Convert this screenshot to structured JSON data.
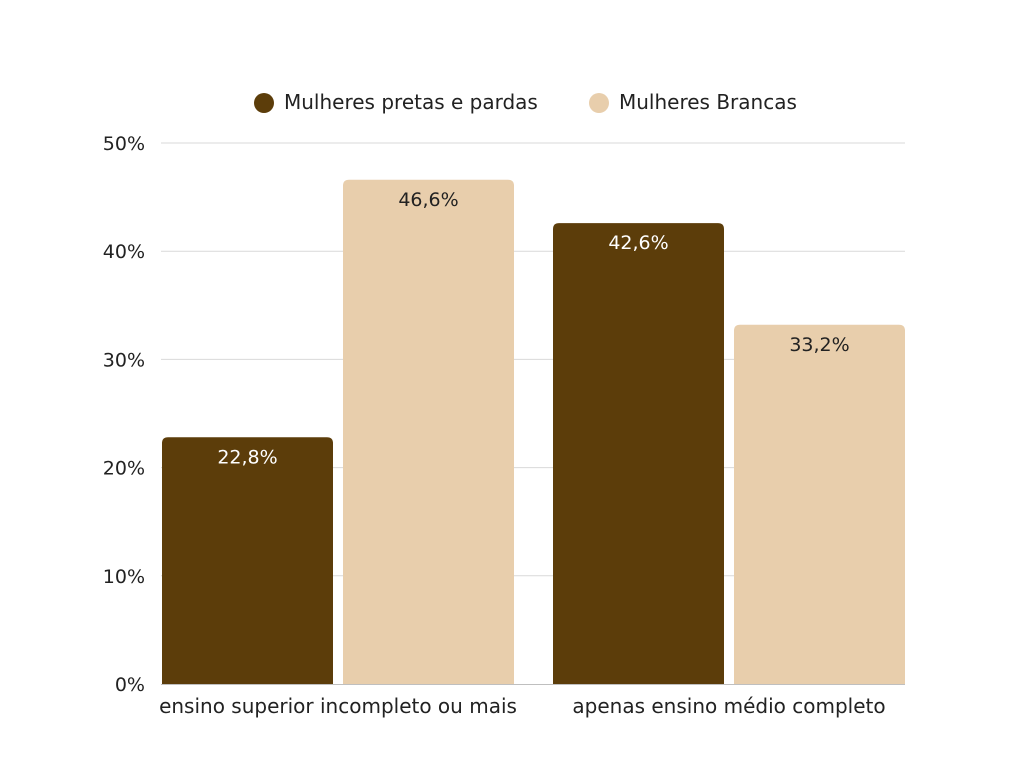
{
  "chart_data": {
    "type": "bar",
    "categories": [
      "ensino superior incompleto ou mais",
      "apenas ensino médio completo"
    ],
    "series": [
      {
        "name": "Mulheres pretas e pardas",
        "values": [
          22.8,
          42.6
        ],
        "labels": [
          "22,8%",
          "42,6%"
        ],
        "color": "#5c3d0a",
        "label_color": "#ffffff",
        "legend_icon": "filled-circle-icon"
      },
      {
        "name": "Mulheres Brancas",
        "values": [
          46.6,
          33.2
        ],
        "labels": [
          "46,6%",
          "33,2%"
        ],
        "color": "#e8ceac",
        "label_color": "#222222",
        "legend_icon": "filled-circle-icon"
      }
    ],
    "y_ticks": [
      "0%",
      "10%",
      "20%",
      "30%",
      "40%",
      "50%"
    ],
    "ylim": [
      0,
      50
    ],
    "grid": true,
    "legend_position": "top-center",
    "grid_color": "#d9d9d9",
    "axis_color": "#bfbfbf"
  }
}
